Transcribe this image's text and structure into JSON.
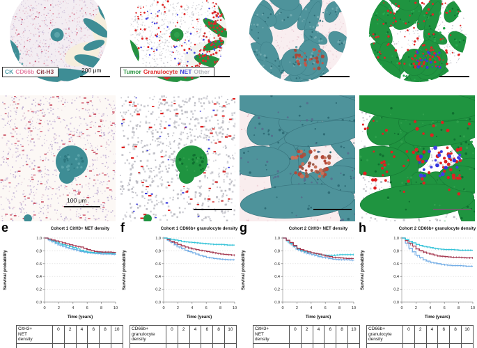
{
  "microscopy": {
    "stain_legend": {
      "items": [
        {
          "label": "CK",
          "color": "#4f9faa"
        },
        {
          "label": "CD66b",
          "color": "#e687a8"
        },
        {
          "label": "Cit-H3",
          "color": "#8e3a46"
        }
      ]
    },
    "class_legend": {
      "items": [
        {
          "label": "Tumor",
          "color": "#2a9440"
        },
        {
          "label": "Granulocyte",
          "color": "#e03030"
        },
        {
          "label": "NET",
          "color": "#4343dd"
        },
        {
          "label": "Other",
          "color": "#b8b8c0"
        }
      ]
    },
    "scale_bar_row1": "200 μm",
    "scale_bar_row2": "100 μm"
  },
  "chart_data": [
    {
      "type": "line",
      "subtype": "kaplan-meier",
      "panel_letter": "e",
      "title": "Cohort 1 CitH3+ NET density",
      "xlabel": "Time (years)",
      "ylabel": "Survival probability",
      "xlim": [
        0,
        10
      ],
      "ylim": [
        0.0,
        1.0
      ],
      "xticks": [
        0,
        2,
        4,
        6,
        8,
        10
      ],
      "yticks": [
        0.0,
        0.2,
        0.4,
        0.6,
        0.8,
        1.0
      ],
      "grid": true,
      "x": [
        0,
        1,
        2,
        3,
        4,
        5,
        6,
        7,
        8,
        9,
        10
      ],
      "series": [
        {
          "name": "light-blue",
          "color": "#74aee6",
          "values": [
            1.0,
            0.94,
            0.89,
            0.85,
            0.82,
            0.79,
            0.77,
            0.76,
            0.75,
            0.75,
            0.74
          ]
        },
        {
          "name": "cyan",
          "color": "#35c3d8",
          "values": [
            1.0,
            0.96,
            0.91,
            0.88,
            0.85,
            0.81,
            0.78,
            0.77,
            0.77,
            0.76,
            0.76
          ]
        },
        {
          "name": "crimson",
          "color": "#a63a52",
          "values": [
            1.0,
            0.97,
            0.94,
            0.91,
            0.88,
            0.86,
            0.82,
            0.79,
            0.78,
            0.78,
            0.77
          ]
        }
      ]
    },
    {
      "type": "line",
      "subtype": "kaplan-meier",
      "panel_letter": "f",
      "title": "Cohort 1 CD66b+ granulocyte density",
      "xlabel": "Time (years)",
      "ylabel": "Survival probability",
      "xlim": [
        0,
        10
      ],
      "ylim": [
        0.0,
        1.0
      ],
      "xticks": [
        0,
        2,
        4,
        6,
        8,
        10
      ],
      "yticks": [
        0.0,
        0.2,
        0.4,
        0.6,
        0.8,
        1.0
      ],
      "grid": true,
      "x": [
        0,
        1,
        2,
        3,
        4,
        5,
        6,
        7,
        8,
        9,
        10
      ],
      "series": [
        {
          "name": "light-blue",
          "color": "#74aee6",
          "values": [
            1.0,
            0.93,
            0.86,
            0.81,
            0.77,
            0.73,
            0.7,
            0.68,
            0.67,
            0.66,
            0.66
          ]
        },
        {
          "name": "crimson",
          "color": "#a63a52",
          "values": [
            1.0,
            0.95,
            0.9,
            0.86,
            0.83,
            0.81,
            0.79,
            0.77,
            0.75,
            0.74,
            0.73
          ]
        },
        {
          "name": "cyan",
          "color": "#35c3d8",
          "values": [
            1.0,
            0.98,
            0.96,
            0.94,
            0.93,
            0.92,
            0.91,
            0.9,
            0.9,
            0.89,
            0.89
          ]
        }
      ]
    },
    {
      "type": "line",
      "subtype": "kaplan-meier",
      "panel_letter": "g",
      "title": "Cohort 2 CitH3+ NET density",
      "xlabel": "Time (years)",
      "ylabel": "Survival probability",
      "xlim": [
        0,
        10
      ],
      "ylim": [
        0.0,
        1.0
      ],
      "xticks": [
        0,
        2,
        4,
        6,
        8,
        10
      ],
      "yticks": [
        0.0,
        0.2,
        0.4,
        0.6,
        0.8,
        1.0
      ],
      "grid": true,
      "x": [
        0,
        1,
        2,
        3,
        4,
        5,
        6,
        7,
        8,
        9,
        10
      ],
      "series": [
        {
          "name": "light-blue",
          "color": "#74aee6",
          "values": [
            1.0,
            0.91,
            0.82,
            0.77,
            0.74,
            0.71,
            0.69,
            0.67,
            0.66,
            0.66,
            0.65
          ]
        },
        {
          "name": "cyan",
          "color": "#35c3d8",
          "values": [
            1.0,
            0.92,
            0.83,
            0.79,
            0.77,
            0.74,
            0.73,
            0.73,
            0.74,
            0.74,
            0.74
          ]
        },
        {
          "name": "crimson",
          "color": "#a63a52",
          "values": [
            1.0,
            0.93,
            0.84,
            0.8,
            0.77,
            0.75,
            0.72,
            0.7,
            0.69,
            0.68,
            0.68
          ]
        }
      ]
    },
    {
      "type": "line",
      "subtype": "kaplan-meier",
      "panel_letter": "h",
      "title": "Cohort 2 CD66b+ granulocyte density",
      "xlabel": "Time (years)",
      "ylabel": "Survival probability",
      "xlim": [
        0,
        10
      ],
      "ylim": [
        0.0,
        1.0
      ],
      "xticks": [
        0,
        2,
        4,
        6,
        8,
        10
      ],
      "yticks": [
        0.0,
        0.2,
        0.4,
        0.6,
        0.8,
        1.0
      ],
      "grid": true,
      "x": [
        0,
        1,
        2,
        3,
        4,
        5,
        6,
        7,
        8,
        9,
        10
      ],
      "series": [
        {
          "name": "light-blue",
          "color": "#74aee6",
          "values": [
            1.0,
            0.84,
            0.73,
            0.66,
            0.62,
            0.6,
            0.58,
            0.57,
            0.57,
            0.56,
            0.56
          ]
        },
        {
          "name": "crimson",
          "color": "#a63a52",
          "values": [
            1.0,
            0.92,
            0.83,
            0.78,
            0.75,
            0.72,
            0.71,
            0.7,
            0.7,
            0.69,
            0.69
          ]
        },
        {
          "name": "cyan",
          "color": "#35c3d8",
          "values": [
            1.0,
            0.95,
            0.9,
            0.87,
            0.85,
            0.83,
            0.82,
            0.82,
            0.81,
            0.81,
            0.81
          ]
        }
      ]
    }
  ],
  "risk_tables": [
    {
      "row_label": "CitH3+\nNET\ndensity",
      "columns": [
        "0",
        "2",
        "4",
        "6",
        "8",
        "10"
      ]
    },
    {
      "row_label": "CD66b+\ngranulocyte\ndensity",
      "columns": [
        "0",
        "2",
        "4",
        "6",
        "8",
        "10"
      ]
    },
    {
      "row_label": "CitH3+\nNET\ndensity",
      "columns": [
        "0",
        "2",
        "4",
        "6",
        "8",
        "10"
      ]
    },
    {
      "row_label": "CD66b+\ngranulocyte\ndensity",
      "columns": [
        "0",
        "2",
        "4",
        "6",
        "8",
        "10"
      ]
    }
  ]
}
